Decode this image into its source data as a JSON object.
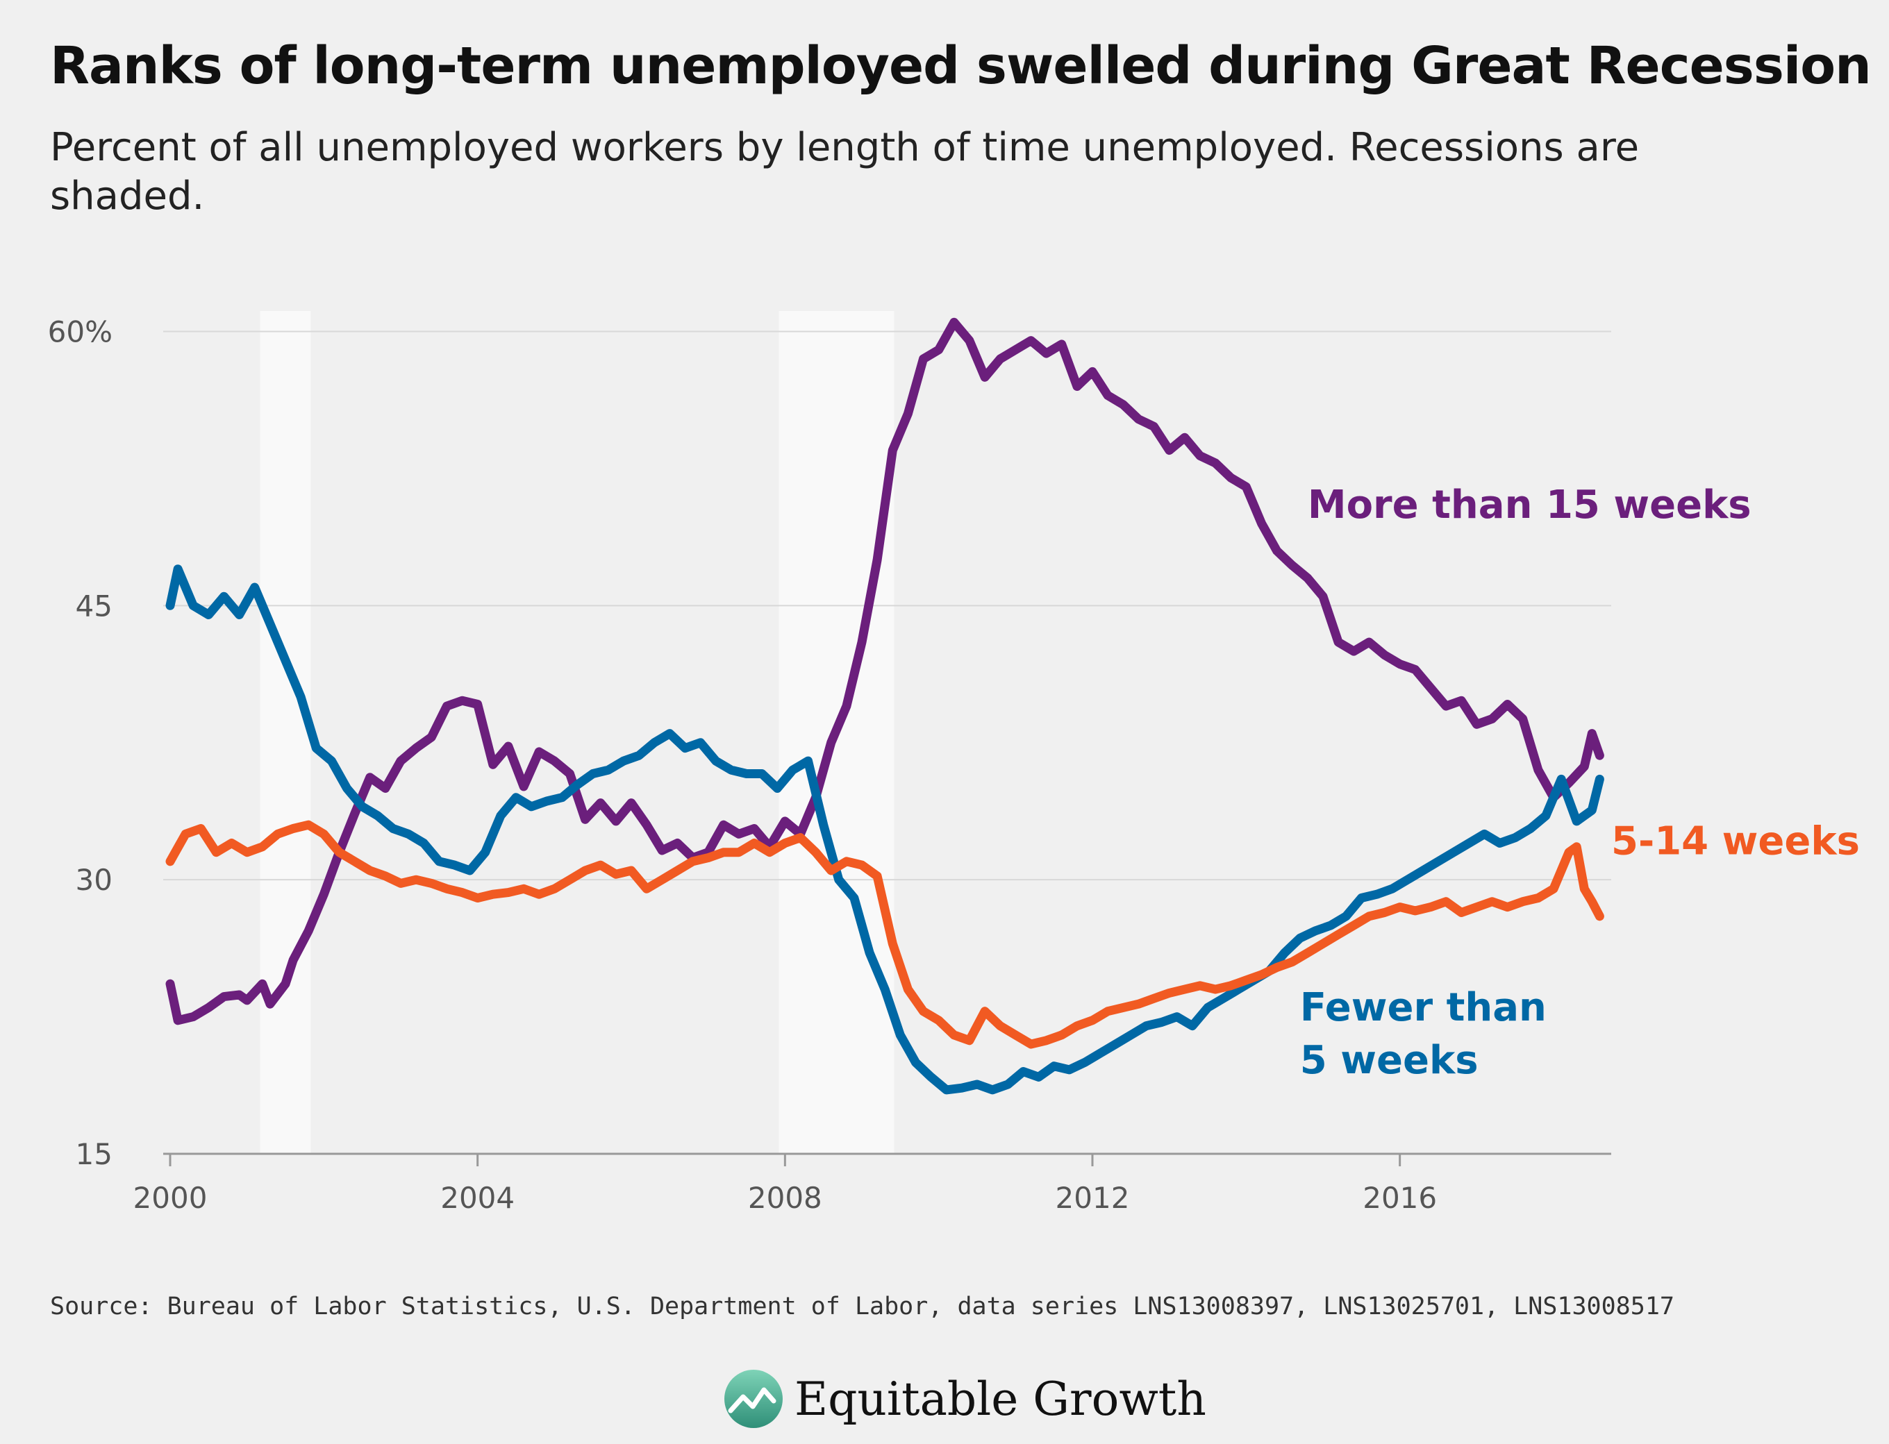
{
  "header": {
    "title": "Ranks of long-term unemployed swelled during Great Recession",
    "subtitle": "Percent of all unemployed workers by length of time unemployed. Recessions are shaded."
  },
  "footer": {
    "source": "Source: Bureau of Labor Statistics, U.S. Department of Labor, data series LNS13008397, LNS13025701, LNS13008517",
    "logo_text": "Equitable Growth"
  },
  "chart_data": {
    "type": "line",
    "title": "Ranks of long-term unemployed swelled during Great Recession",
    "subtitle": "Percent of all unemployed workers by length of time unemployed. Recessions are shaded.",
    "xlim": [
      2000,
      2018.75
    ],
    "ylim": [
      15,
      61.5
    ],
    "x_ticks": [
      2000,
      2004,
      2008,
      2012,
      2016
    ],
    "x_tick_labels": [
      "2000",
      "2004",
      "2008",
      "2012",
      "2016"
    ],
    "y_ticks": [
      15,
      30,
      45,
      60
    ],
    "y_tick_labels": [
      "15",
      "30",
      "45",
      "60%"
    ],
    "grid": "horizontal",
    "recessions": [
      [
        2001.17,
        2001.83
      ],
      [
        2007.92,
        2009.42
      ]
    ],
    "series": [
      {
        "name": "More than 15 weeks",
        "color": "#6b1f7c",
        "points": [
          [
            2000.0,
            24.3
          ],
          [
            2000.1,
            22.3
          ],
          [
            2000.3,
            22.5
          ],
          [
            2000.5,
            23.0
          ],
          [
            2000.7,
            23.6
          ],
          [
            2000.9,
            23.7
          ],
          [
            2001.0,
            23.4
          ],
          [
            2001.2,
            24.3
          ],
          [
            2001.3,
            23.2
          ],
          [
            2001.5,
            24.3
          ],
          [
            2001.6,
            25.6
          ],
          [
            2001.8,
            27.2
          ],
          [
            2002.0,
            29.2
          ],
          [
            2002.2,
            31.5
          ],
          [
            2002.4,
            33.6
          ],
          [
            2002.6,
            35.6
          ],
          [
            2002.8,
            35.0
          ],
          [
            2003.0,
            36.5
          ],
          [
            2003.2,
            37.2
          ],
          [
            2003.4,
            37.8
          ],
          [
            2003.6,
            39.5
          ],
          [
            2003.8,
            39.8
          ],
          [
            2004.0,
            39.6
          ],
          [
            2004.2,
            36.3
          ],
          [
            2004.4,
            37.3
          ],
          [
            2004.6,
            35.1
          ],
          [
            2004.8,
            37.0
          ],
          [
            2005.0,
            36.5
          ],
          [
            2005.2,
            35.8
          ],
          [
            2005.4,
            33.3
          ],
          [
            2005.6,
            34.2
          ],
          [
            2005.8,
            33.2
          ],
          [
            2006.0,
            34.2
          ],
          [
            2006.2,
            33.0
          ],
          [
            2006.4,
            31.6
          ],
          [
            2006.6,
            32.0
          ],
          [
            2006.8,
            31.2
          ],
          [
            2007.0,
            31.5
          ],
          [
            2007.2,
            33.0
          ],
          [
            2007.4,
            32.5
          ],
          [
            2007.6,
            32.8
          ],
          [
            2007.8,
            31.8
          ],
          [
            2008.0,
            33.2
          ],
          [
            2008.2,
            32.5
          ],
          [
            2008.4,
            34.5
          ],
          [
            2008.6,
            37.5
          ],
          [
            2008.8,
            39.5
          ],
          [
            2009.0,
            43.0
          ],
          [
            2009.2,
            47.5
          ],
          [
            2009.4,
            53.5
          ],
          [
            2009.6,
            55.5
          ],
          [
            2009.8,
            58.5
          ],
          [
            2010.0,
            59.0
          ],
          [
            2010.2,
            60.5
          ],
          [
            2010.4,
            59.5
          ],
          [
            2010.6,
            57.5
          ],
          [
            2010.8,
            58.5
          ],
          [
            2011.0,
            59.0
          ],
          [
            2011.2,
            59.5
          ],
          [
            2011.4,
            58.8
          ],
          [
            2011.6,
            59.3
          ],
          [
            2011.8,
            57.0
          ],
          [
            2012.0,
            57.8
          ],
          [
            2012.2,
            56.5
          ],
          [
            2012.4,
            56.0
          ],
          [
            2012.6,
            55.2
          ],
          [
            2012.8,
            54.8
          ],
          [
            2013.0,
            53.5
          ],
          [
            2013.2,
            54.2
          ],
          [
            2013.4,
            53.2
          ],
          [
            2013.6,
            52.8
          ],
          [
            2013.8,
            52.0
          ],
          [
            2014.0,
            51.5
          ],
          [
            2014.2,
            49.5
          ],
          [
            2014.4,
            48.0
          ],
          [
            2014.6,
            47.2
          ],
          [
            2014.8,
            46.5
          ],
          [
            2015.0,
            45.5
          ],
          [
            2015.2,
            43.0
          ],
          [
            2015.4,
            42.5
          ],
          [
            2015.6,
            43.0
          ],
          [
            2015.8,
            42.3
          ],
          [
            2016.0,
            41.8
          ],
          [
            2016.2,
            41.5
          ],
          [
            2016.4,
            40.5
          ],
          [
            2016.6,
            39.5
          ],
          [
            2016.8,
            39.8
          ],
          [
            2017.0,
            38.5
          ],
          [
            2017.2,
            38.8
          ],
          [
            2017.4,
            39.6
          ],
          [
            2017.6,
            38.8
          ],
          [
            2017.8,
            36.0
          ],
          [
            2018.0,
            34.5
          ],
          [
            2018.2,
            35.3
          ],
          [
            2018.4,
            36.2
          ],
          [
            2018.5,
            38.0
          ],
          [
            2018.6,
            36.8
          ]
        ]
      },
      {
        "name": "Fewer than 5 weeks",
        "color": "#0068a5",
        "points": [
          [
            2000.0,
            45.0
          ],
          [
            2000.1,
            47.0
          ],
          [
            2000.3,
            45.0
          ],
          [
            2000.5,
            44.5
          ],
          [
            2000.7,
            45.5
          ],
          [
            2000.9,
            44.5
          ],
          [
            2001.1,
            46.0
          ],
          [
            2001.3,
            44.0
          ],
          [
            2001.5,
            42.0
          ],
          [
            2001.7,
            40.0
          ],
          [
            2001.9,
            37.2
          ],
          [
            2002.1,
            36.5
          ],
          [
            2002.3,
            35.0
          ],
          [
            2002.5,
            34.0
          ],
          [
            2002.7,
            33.5
          ],
          [
            2002.9,
            32.8
          ],
          [
            2003.1,
            32.5
          ],
          [
            2003.3,
            32.0
          ],
          [
            2003.5,
            31.0
          ],
          [
            2003.7,
            30.8
          ],
          [
            2003.9,
            30.5
          ],
          [
            2004.1,
            31.5
          ],
          [
            2004.3,
            33.5
          ],
          [
            2004.5,
            34.5
          ],
          [
            2004.7,
            34.0
          ],
          [
            2004.9,
            34.3
          ],
          [
            2005.1,
            34.5
          ],
          [
            2005.3,
            35.2
          ],
          [
            2005.5,
            35.8
          ],
          [
            2005.7,
            36.0
          ],
          [
            2005.9,
            36.5
          ],
          [
            2006.1,
            36.8
          ],
          [
            2006.3,
            37.5
          ],
          [
            2006.5,
            38.0
          ],
          [
            2006.7,
            37.2
          ],
          [
            2006.9,
            37.5
          ],
          [
            2007.1,
            36.5
          ],
          [
            2007.3,
            36.0
          ],
          [
            2007.5,
            35.8
          ],
          [
            2007.7,
            35.8
          ],
          [
            2007.9,
            35.0
          ],
          [
            2008.1,
            36.0
          ],
          [
            2008.3,
            36.5
          ],
          [
            2008.5,
            33.0
          ],
          [
            2008.7,
            30.0
          ],
          [
            2008.9,
            29.0
          ],
          [
            2009.1,
            26.0
          ],
          [
            2009.3,
            24.0
          ],
          [
            2009.5,
            21.5
          ],
          [
            2009.7,
            20.0
          ],
          [
            2009.9,
            19.2
          ],
          [
            2010.1,
            18.5
          ],
          [
            2010.3,
            18.6
          ],
          [
            2010.5,
            18.8
          ],
          [
            2010.7,
            18.5
          ],
          [
            2010.9,
            18.8
          ],
          [
            2011.1,
            19.5
          ],
          [
            2011.3,
            19.2
          ],
          [
            2011.5,
            19.8
          ],
          [
            2011.7,
            19.6
          ],
          [
            2011.9,
            20.0
          ],
          [
            2012.1,
            20.5
          ],
          [
            2012.3,
            21.0
          ],
          [
            2012.5,
            21.5
          ],
          [
            2012.7,
            22.0
          ],
          [
            2012.9,
            22.2
          ],
          [
            2013.1,
            22.5
          ],
          [
            2013.3,
            22.0
          ],
          [
            2013.5,
            23.0
          ],
          [
            2013.7,
            23.5
          ],
          [
            2013.9,
            24.0
          ],
          [
            2014.1,
            24.5
          ],
          [
            2014.3,
            25.0
          ],
          [
            2014.5,
            26.0
          ],
          [
            2014.7,
            26.8
          ],
          [
            2014.9,
            27.2
          ],
          [
            2015.1,
            27.5
          ],
          [
            2015.3,
            28.0
          ],
          [
            2015.5,
            29.0
          ],
          [
            2015.7,
            29.2
          ],
          [
            2015.9,
            29.5
          ],
          [
            2016.1,
            30.0
          ],
          [
            2016.3,
            30.5
          ],
          [
            2016.5,
            31.0
          ],
          [
            2016.7,
            31.5
          ],
          [
            2016.9,
            32.0
          ],
          [
            2017.1,
            32.5
          ],
          [
            2017.3,
            32.0
          ],
          [
            2017.5,
            32.3
          ],
          [
            2017.7,
            32.8
          ],
          [
            2017.9,
            33.5
          ],
          [
            2018.1,
            35.5
          ],
          [
            2018.3,
            33.2
          ],
          [
            2018.5,
            33.8
          ],
          [
            2018.6,
            35.5
          ]
        ]
      },
      {
        "name": "5-14 weeks",
        "color": "#f15a22",
        "points": [
          [
            2000.0,
            31.0
          ],
          [
            2000.2,
            32.5
          ],
          [
            2000.4,
            32.8
          ],
          [
            2000.6,
            31.5
          ],
          [
            2000.8,
            32.0
          ],
          [
            2001.0,
            31.5
          ],
          [
            2001.2,
            31.8
          ],
          [
            2001.4,
            32.5
          ],
          [
            2001.6,
            32.8
          ],
          [
            2001.8,
            33.0
          ],
          [
            2002.0,
            32.5
          ],
          [
            2002.2,
            31.5
          ],
          [
            2002.4,
            31.0
          ],
          [
            2002.6,
            30.5
          ],
          [
            2002.8,
            30.2
          ],
          [
            2003.0,
            29.8
          ],
          [
            2003.2,
            30.0
          ],
          [
            2003.4,
            29.8
          ],
          [
            2003.6,
            29.5
          ],
          [
            2003.8,
            29.3
          ],
          [
            2004.0,
            29.0
          ],
          [
            2004.2,
            29.2
          ],
          [
            2004.4,
            29.3
          ],
          [
            2004.6,
            29.5
          ],
          [
            2004.8,
            29.2
          ],
          [
            2005.0,
            29.5
          ],
          [
            2005.2,
            30.0
          ],
          [
            2005.4,
            30.5
          ],
          [
            2005.6,
            30.8
          ],
          [
            2005.8,
            30.3
          ],
          [
            2006.0,
            30.5
          ],
          [
            2006.2,
            29.5
          ],
          [
            2006.4,
            30.0
          ],
          [
            2006.6,
            30.5
          ],
          [
            2006.8,
            31.0
          ],
          [
            2007.0,
            31.2
          ],
          [
            2007.2,
            31.5
          ],
          [
            2007.4,
            31.5
          ],
          [
            2007.6,
            32.0
          ],
          [
            2007.8,
            31.5
          ],
          [
            2008.0,
            32.0
          ],
          [
            2008.2,
            32.3
          ],
          [
            2008.4,
            31.5
          ],
          [
            2008.6,
            30.5
          ],
          [
            2008.8,
            31.0
          ],
          [
            2009.0,
            30.8
          ],
          [
            2009.2,
            30.2
          ],
          [
            2009.4,
            26.5
          ],
          [
            2009.6,
            24.0
          ],
          [
            2009.8,
            22.8
          ],
          [
            2010.0,
            22.3
          ],
          [
            2010.2,
            21.5
          ],
          [
            2010.4,
            21.2
          ],
          [
            2010.6,
            22.8
          ],
          [
            2010.8,
            22.0
          ],
          [
            2011.0,
            21.5
          ],
          [
            2011.2,
            21.0
          ],
          [
            2011.4,
            21.2
          ],
          [
            2011.6,
            21.5
          ],
          [
            2011.8,
            22.0
          ],
          [
            2012.0,
            22.3
          ],
          [
            2012.2,
            22.8
          ],
          [
            2012.4,
            23.0
          ],
          [
            2012.6,
            23.2
          ],
          [
            2012.8,
            23.5
          ],
          [
            2013.0,
            23.8
          ],
          [
            2013.2,
            24.0
          ],
          [
            2013.4,
            24.2
          ],
          [
            2013.6,
            24.0
          ],
          [
            2013.8,
            24.2
          ],
          [
            2014.0,
            24.5
          ],
          [
            2014.2,
            24.8
          ],
          [
            2014.4,
            25.2
          ],
          [
            2014.6,
            25.5
          ],
          [
            2014.8,
            26.0
          ],
          [
            2015.0,
            26.5
          ],
          [
            2015.2,
            27.0
          ],
          [
            2015.4,
            27.5
          ],
          [
            2015.6,
            28.0
          ],
          [
            2015.8,
            28.2
          ],
          [
            2016.0,
            28.5
          ],
          [
            2016.2,
            28.3
          ],
          [
            2016.4,
            28.5
          ],
          [
            2016.6,
            28.8
          ],
          [
            2016.8,
            28.2
          ],
          [
            2017.0,
            28.5
          ],
          [
            2017.2,
            28.8
          ],
          [
            2017.4,
            28.5
          ],
          [
            2017.6,
            28.8
          ],
          [
            2017.8,
            29.0
          ],
          [
            2018.0,
            29.5
          ],
          [
            2018.2,
            31.5
          ],
          [
            2018.3,
            31.8
          ],
          [
            2018.4,
            29.5
          ],
          [
            2018.5,
            28.8
          ],
          [
            2018.6,
            28.0
          ]
        ]
      }
    ],
    "annotations": [
      {
        "series": "More than 15 weeks",
        "lines": [
          "More than 15 weeks"
        ],
        "x": 2014.8,
        "y": 49.8,
        "anchor": "start"
      },
      {
        "series": "5-14 weeks",
        "lines": [
          "5-14 weeks"
        ],
        "x": 2018.75,
        "y": 31.4,
        "anchor": "start"
      },
      {
        "series": "Fewer than 5 weeks",
        "lines": [
          "Fewer than",
          "5 weeks"
        ],
        "x": 2014.7,
        "y": 22.3,
        "anchor": "start"
      }
    ]
  }
}
